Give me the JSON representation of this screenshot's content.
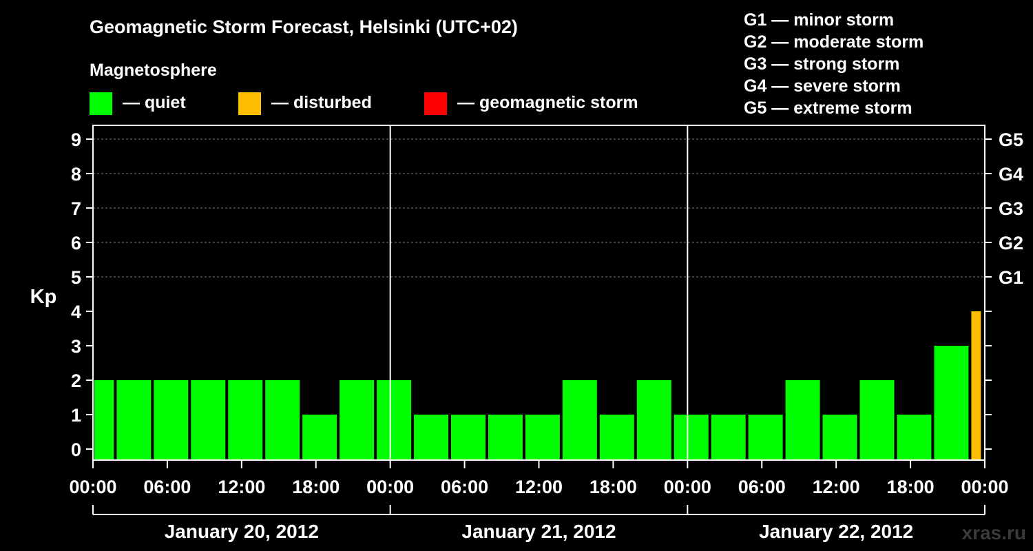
{
  "chart_data": {
    "type": "bar",
    "title": "Geomagnetic Storm Forecast, Helsinki (UTC+02)",
    "legend_heading": "Magnetosphere",
    "legend": [
      {
        "label": "— quiet",
        "color": "#00ff00"
      },
      {
        "label": "— disturbed",
        "color": "#ffbf00"
      },
      {
        "label": "— geomagnetic storm",
        "color": "#ff0000"
      }
    ],
    "storm_scale": [
      "G1 — minor storm",
      "G2 — moderate storm",
      "G3 — strong storm",
      "G4 — severe storm",
      "G5 — extreme storm"
    ],
    "ylabel": "Kp",
    "ylim": [
      0,
      9
    ],
    "yticks": [
      "0",
      "1",
      "2",
      "3",
      "4",
      "5",
      "6",
      "7",
      "8",
      "9"
    ],
    "right_ticks": [
      {
        "kp": 5,
        "label": "G1"
      },
      {
        "kp": 6,
        "label": "G2"
      },
      {
        "kp": 7,
        "label": "G3"
      },
      {
        "kp": 8,
        "label": "G4"
      },
      {
        "kp": 9,
        "label": "G5"
      }
    ],
    "xlim_hours": [
      0,
      72
    ],
    "xticks": [
      {
        "hour": 0,
        "label": "00:00"
      },
      {
        "hour": 6,
        "label": "06:00"
      },
      {
        "hour": 12,
        "label": "12:00"
      },
      {
        "hour": 18,
        "label": "18:00"
      },
      {
        "hour": 24,
        "label": "00:00"
      },
      {
        "hour": 30,
        "label": "06:00"
      },
      {
        "hour": 36,
        "label": "12:00"
      },
      {
        "hour": 42,
        "label": "18:00"
      },
      {
        "hour": 48,
        "label": "00:00"
      },
      {
        "hour": 54,
        "label": "06:00"
      },
      {
        "hour": 60,
        "label": "12:00"
      },
      {
        "hour": 66,
        "label": "18:00"
      },
      {
        "hour": 72,
        "label": "00:00"
      }
    ],
    "day_boundaries_hours": [
      24,
      48
    ],
    "days": [
      {
        "label": "January 20, 2012",
        "start_hour": 0,
        "end_hour": 24
      },
      {
        "label": "January 21, 2012",
        "start_hour": 24,
        "end_hour": 48
      },
      {
        "label": "January 22, 2012",
        "start_hour": 48,
        "end_hour": 72
      }
    ],
    "bars": [
      {
        "start_hour": 0,
        "end_hour": 1.8,
        "kp": 2,
        "level": "quiet"
      },
      {
        "start_hour": 1.8,
        "end_hour": 4.8,
        "kp": 2,
        "level": "quiet"
      },
      {
        "start_hour": 4.8,
        "end_hour": 7.8,
        "kp": 2,
        "level": "quiet"
      },
      {
        "start_hour": 7.8,
        "end_hour": 10.8,
        "kp": 2,
        "level": "quiet"
      },
      {
        "start_hour": 10.8,
        "end_hour": 13.8,
        "kp": 2,
        "level": "quiet"
      },
      {
        "start_hour": 13.8,
        "end_hour": 16.8,
        "kp": 2,
        "level": "quiet"
      },
      {
        "start_hour": 16.8,
        "end_hour": 19.8,
        "kp": 1,
        "level": "quiet"
      },
      {
        "start_hour": 19.8,
        "end_hour": 22.8,
        "kp": 2,
        "level": "quiet"
      },
      {
        "start_hour": 22.8,
        "end_hour": 25.8,
        "kp": 2,
        "level": "quiet"
      },
      {
        "start_hour": 25.8,
        "end_hour": 28.8,
        "kp": 1,
        "level": "quiet"
      },
      {
        "start_hour": 28.8,
        "end_hour": 31.8,
        "kp": 1,
        "level": "quiet"
      },
      {
        "start_hour": 31.8,
        "end_hour": 34.8,
        "kp": 1,
        "level": "quiet"
      },
      {
        "start_hour": 34.8,
        "end_hour": 37.8,
        "kp": 1,
        "level": "quiet"
      },
      {
        "start_hour": 37.8,
        "end_hour": 40.8,
        "kp": 2,
        "level": "quiet"
      },
      {
        "start_hour": 40.8,
        "end_hour": 43.8,
        "kp": 1,
        "level": "quiet"
      },
      {
        "start_hour": 43.8,
        "end_hour": 46.8,
        "kp": 2,
        "level": "quiet"
      },
      {
        "start_hour": 46.8,
        "end_hour": 49.8,
        "kp": 1,
        "level": "quiet"
      },
      {
        "start_hour": 49.8,
        "end_hour": 52.8,
        "kp": 1,
        "level": "quiet"
      },
      {
        "start_hour": 52.8,
        "end_hour": 55.8,
        "kp": 1,
        "level": "quiet"
      },
      {
        "start_hour": 55.8,
        "end_hour": 58.8,
        "kp": 2,
        "level": "quiet"
      },
      {
        "start_hour": 58.8,
        "end_hour": 61.8,
        "kp": 1,
        "level": "quiet"
      },
      {
        "start_hour": 61.8,
        "end_hour": 64.8,
        "kp": 2,
        "level": "quiet"
      },
      {
        "start_hour": 64.8,
        "end_hour": 67.8,
        "kp": 1,
        "level": "quiet"
      },
      {
        "start_hour": 67.8,
        "end_hour": 70.8,
        "kp": 3,
        "level": "quiet"
      },
      {
        "start_hour": 70.8,
        "end_hour": 71.8,
        "kp": 4,
        "level": "disturbed"
      }
    ],
    "level_colors": {
      "quiet": "#00ff00",
      "disturbed": "#ffbf00",
      "storm": "#ff0000"
    },
    "grid": "dashed at Kp 5-9"
  },
  "watermark": "xras.ru"
}
